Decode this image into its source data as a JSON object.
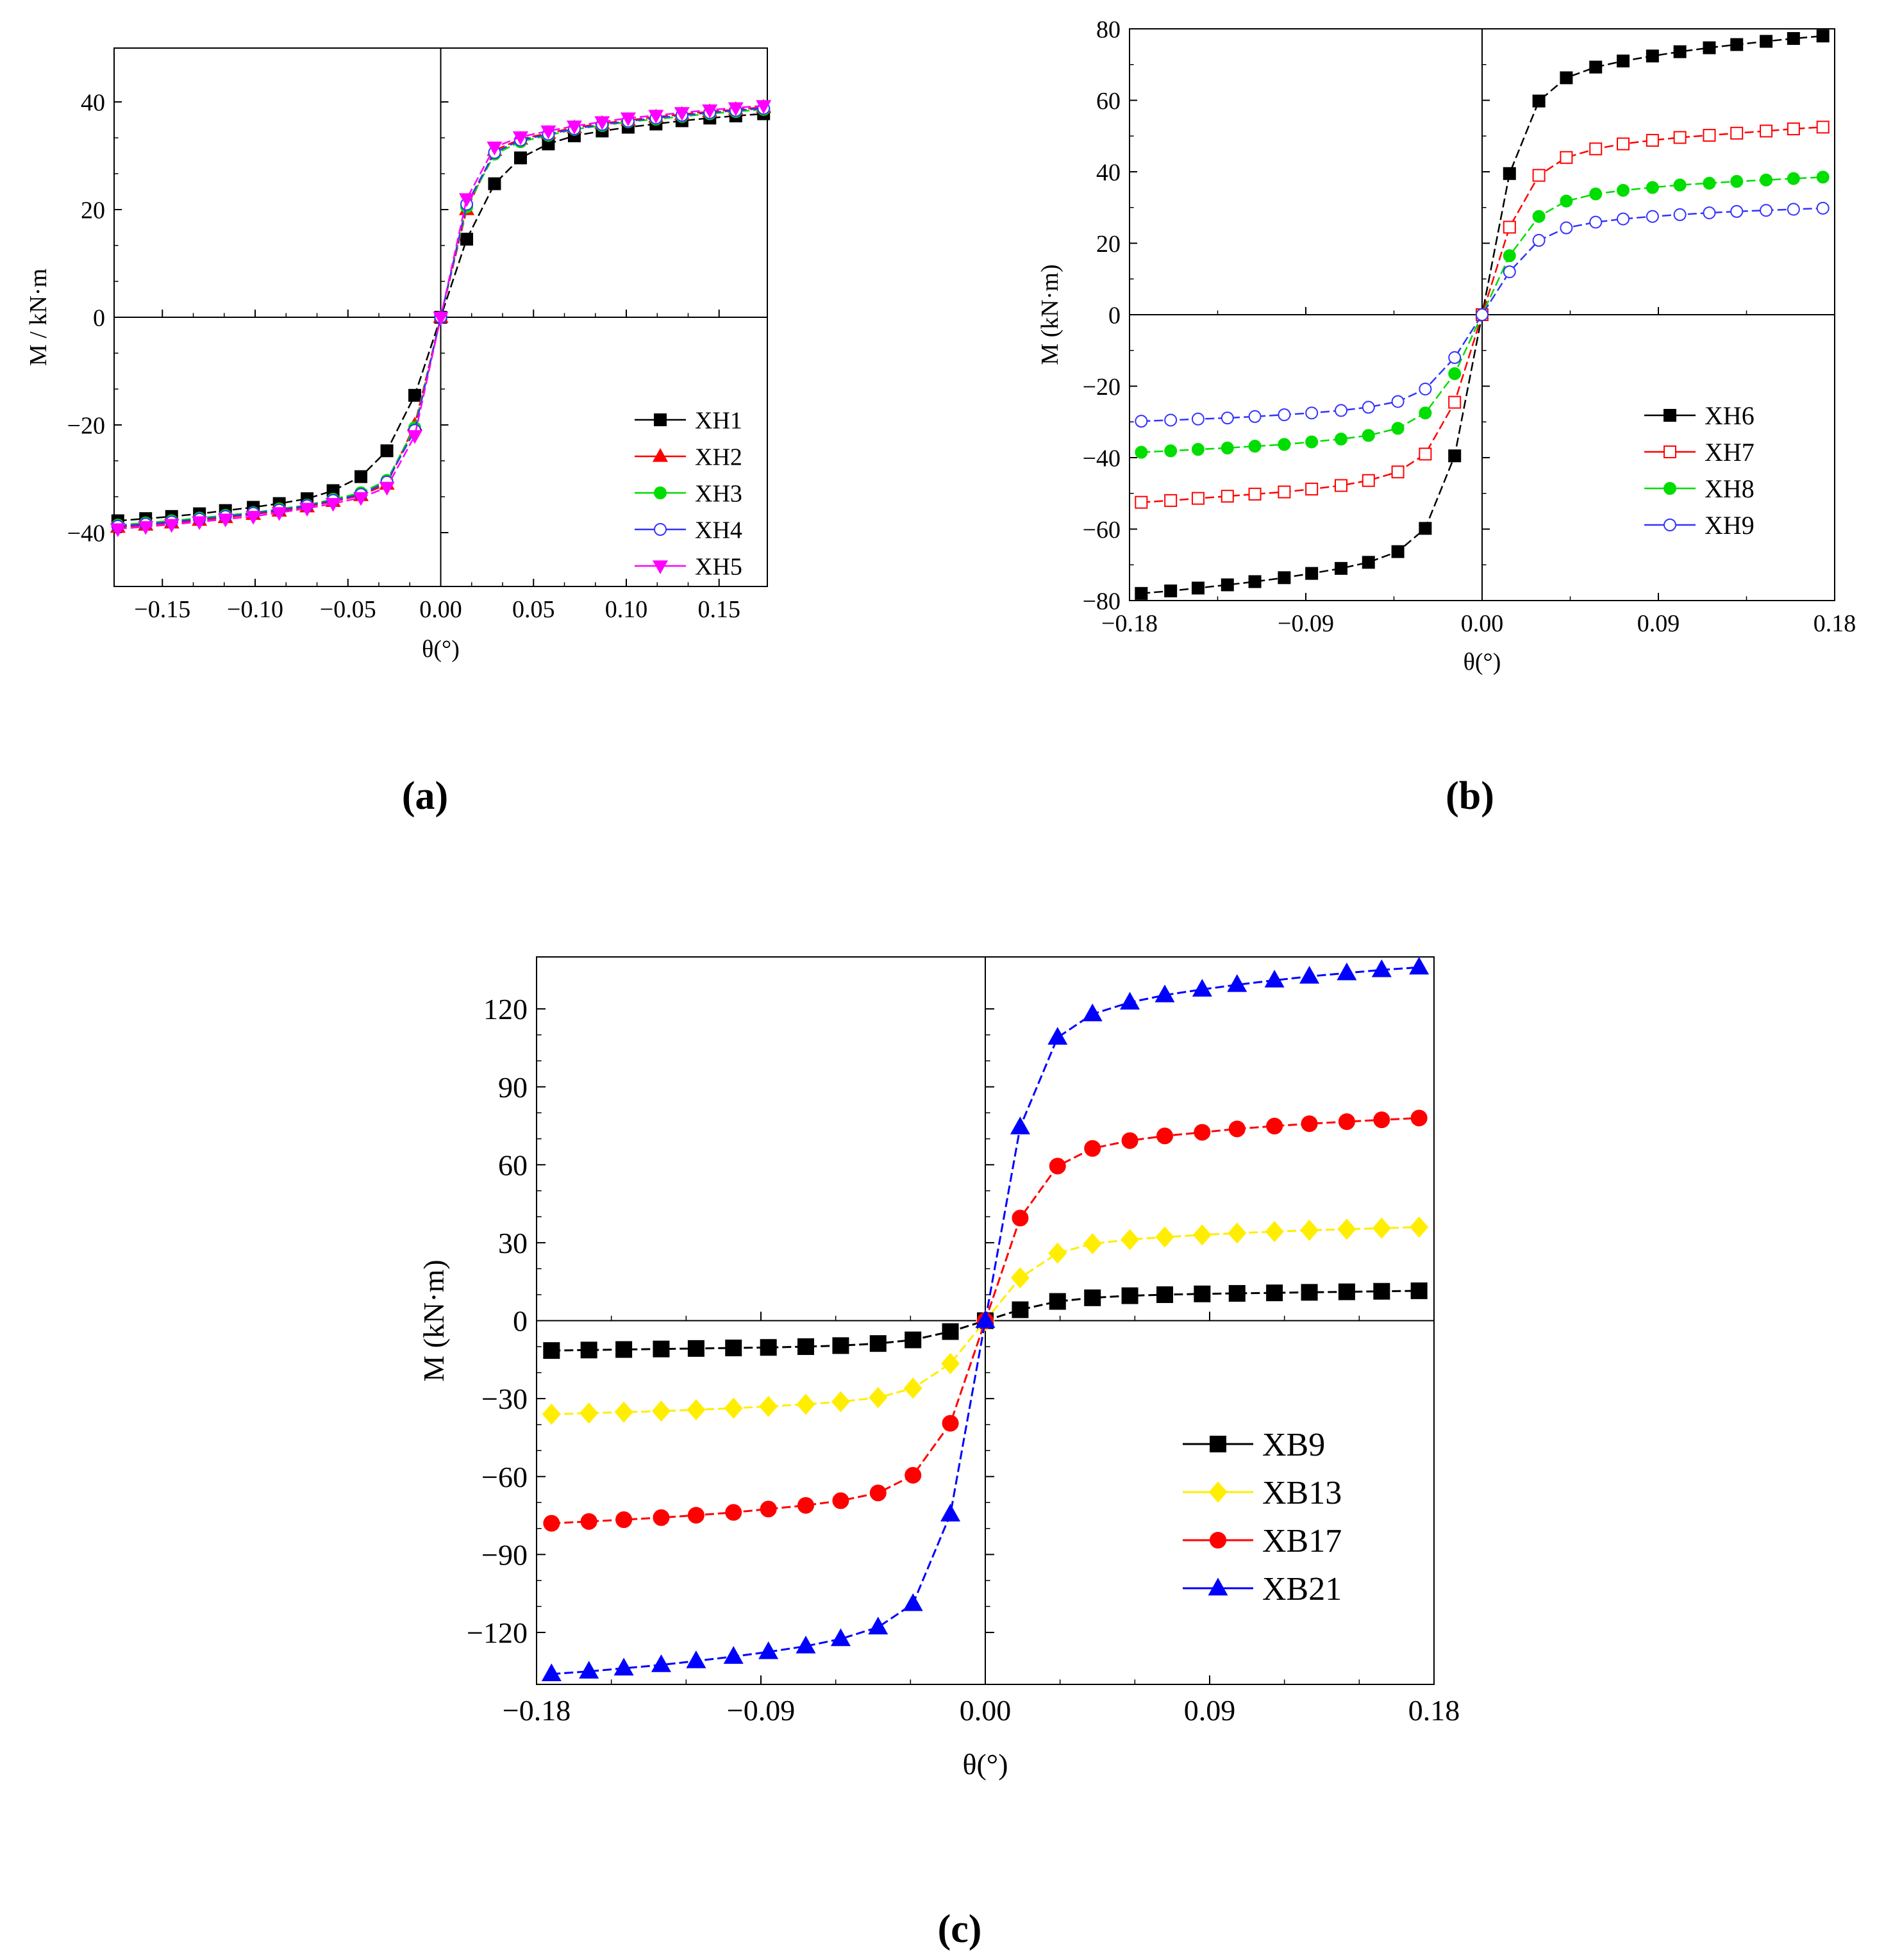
{
  "figure": {
    "panel_labels": [
      "(a)",
      "(b)",
      "(c)"
    ]
  },
  "chart_data": [
    {
      "type": "line",
      "panel": "(a)",
      "title": "",
      "xlabel": "θ(°)",
      "ylabel": "M / kN·m",
      "xlim": [
        -0.176,
        0.176
      ],
      "ylim": [
        -50,
        50
      ],
      "xticks": [
        -0.15,
        -0.1,
        -0.05,
        0.0,
        0.05,
        0.1,
        0.15
      ],
      "xtick_labels": [
        "−0.15",
        "−0.10",
        "−0.05",
        "0.00",
        "0.05",
        "0.10",
        "0.15"
      ],
      "yticks": [
        -40,
        -20,
        0,
        20,
        40
      ],
      "ytick_labels": [
        "−40",
        "−20",
        "0",
        "20",
        "40"
      ],
      "legend_position": "bottom-right",
      "x": [
        -0.174,
        -0.159,
        -0.145,
        -0.13,
        -0.116,
        -0.101,
        -0.087,
        -0.072,
        -0.058,
        -0.043,
        -0.029,
        -0.014,
        0,
        0.014,
        0.029,
        0.043,
        0.058,
        0.072,
        0.087,
        0.101,
        0.116,
        0.13,
        0.145,
        0.159,
        0.174
      ],
      "series": [
        {
          "name": "XH1",
          "color": "#000000",
          "marker": "square-filled",
          "values": [
            -37.8,
            -37.4,
            -37.0,
            -36.5,
            -35.9,
            -35.3,
            -34.6,
            -33.7,
            -32.2,
            -29.6,
            -24.8,
            -14.5,
            0,
            14.5,
            24.8,
            29.6,
            32.2,
            33.7,
            34.6,
            35.3,
            35.9,
            36.5,
            37.0,
            37.4,
            37.8
          ]
        },
        {
          "name": "XH2",
          "color": "#ff0000",
          "marker": "triangle-up-filled",
          "values": [
            -39.0,
            -38.6,
            -38.2,
            -37.7,
            -37.2,
            -36.6,
            -36.0,
            -35.2,
            -34.2,
            -33.1,
            -31.0,
            -20.0,
            0,
            20.0,
            31.0,
            33.1,
            34.2,
            35.2,
            36.0,
            36.6,
            37.2,
            37.7,
            38.2,
            38.6,
            39.0
          ]
        },
        {
          "name": "XH3",
          "color": "#00dd00",
          "marker": "circle-filled",
          "values": [
            -38.6,
            -38.2,
            -37.8,
            -37.3,
            -36.8,
            -36.3,
            -35.6,
            -34.9,
            -33.8,
            -32.6,
            -30.3,
            -20.5,
            0,
            20.5,
            30.3,
            32.6,
            33.8,
            34.9,
            35.6,
            36.3,
            36.8,
            37.3,
            37.8,
            38.2,
            38.6
          ]
        },
        {
          "name": "XH4",
          "color": "#3333ff",
          "marker": "circle-open",
          "values": [
            -38.8,
            -38.4,
            -38.0,
            -37.5,
            -37.0,
            -36.4,
            -35.8,
            -35.0,
            -34.0,
            -32.9,
            -30.6,
            -21.0,
            0,
            21.0,
            30.6,
            32.9,
            34.0,
            35.0,
            35.8,
            36.4,
            37.0,
            37.5,
            38.0,
            38.4,
            38.8
          ]
        },
        {
          "name": "XH5",
          "color": "#ff00ff",
          "marker": "triangle-down-filled",
          "values": [
            -39.3,
            -38.9,
            -38.5,
            -38.0,
            -37.5,
            -37.0,
            -36.3,
            -35.5,
            -34.6,
            -33.5,
            -31.6,
            -22.0,
            0,
            22.0,
            31.6,
            33.5,
            34.6,
            35.5,
            36.3,
            37.0,
            37.5,
            38.0,
            38.5,
            38.9,
            39.3
          ]
        }
      ]
    },
    {
      "type": "line",
      "panel": "(b)",
      "title": "",
      "xlabel": "θ(°)",
      "ylabel": "M (kN·m)",
      "xlim": [
        -0.18,
        0.18
      ],
      "ylim": [
        -80,
        80
      ],
      "xticks": [
        -0.18,
        -0.09,
        0.0,
        0.09,
        0.18
      ],
      "xtick_labels": [
        "−0.18",
        "−0.09",
        "0.00",
        "0.09",
        "0.18"
      ],
      "yticks": [
        -80,
        -60,
        -40,
        -20,
        0,
        20,
        40,
        60,
        80
      ],
      "ytick_labels": [
        "−80",
        "−60",
        "−40",
        "−20",
        "0",
        "20",
        "40",
        "60",
        "80"
      ],
      "legend_position": "bottom-right",
      "x": [
        -0.174,
        -0.159,
        -0.145,
        -0.13,
        -0.116,
        -0.101,
        -0.087,
        -0.072,
        -0.058,
        -0.043,
        -0.029,
        -0.014,
        0,
        0.014,
        0.029,
        0.043,
        0.058,
        0.072,
        0.087,
        0.101,
        0.116,
        0.13,
        0.145,
        0.159,
        0.174
      ],
      "series": [
        {
          "name": "XH6",
          "color": "#000000",
          "marker": "square-filled",
          "values": [
            -78.0,
            -77.3,
            -76.5,
            -75.6,
            -74.7,
            -73.6,
            -72.4,
            -71.0,
            -69.3,
            -66.3,
            -59.8,
            -39.5,
            0,
            39.5,
            59.8,
            66.3,
            69.3,
            71.0,
            72.4,
            73.6,
            74.7,
            75.6,
            76.5,
            77.3,
            78.0
          ]
        },
        {
          "name": "XH7",
          "color": "#ff0000",
          "marker": "square-open",
          "values": [
            -52.5,
            -52.0,
            -51.4,
            -50.8,
            -50.2,
            -49.6,
            -48.8,
            -47.8,
            -46.4,
            -44.0,
            -39.0,
            -24.5,
            0,
            24.5,
            39.0,
            44.0,
            46.4,
            47.8,
            48.8,
            49.6,
            50.2,
            50.8,
            51.4,
            52.0,
            52.5
          ]
        },
        {
          "name": "XH8",
          "color": "#00dd00",
          "marker": "circle-filled",
          "values": [
            -38.5,
            -38.1,
            -37.7,
            -37.3,
            -36.8,
            -36.3,
            -35.6,
            -34.8,
            -33.8,
            -31.8,
            -27.5,
            -16.5,
            0,
            16.5,
            27.5,
            31.8,
            33.8,
            34.8,
            35.6,
            36.3,
            36.8,
            37.3,
            37.7,
            38.1,
            38.5
          ]
        },
        {
          "name": "XH9",
          "color": "#3333ff",
          "marker": "circle-open",
          "values": [
            -29.8,
            -29.5,
            -29.2,
            -28.9,
            -28.5,
            -28.0,
            -27.5,
            -26.8,
            -25.9,
            -24.3,
            -20.8,
            -12.0,
            0,
            12.0,
            20.8,
            24.3,
            25.9,
            26.8,
            27.5,
            28.0,
            28.5,
            28.9,
            29.2,
            29.5,
            29.8
          ]
        }
      ]
    },
    {
      "type": "line",
      "panel": "(c)",
      "title": "",
      "xlabel": "θ(°)",
      "ylabel": "M (kN·m)",
      "xlim": [
        -0.18,
        0.18
      ],
      "ylim": [
        -140,
        140
      ],
      "xticks": [
        -0.18,
        -0.09,
        0.0,
        0.09,
        0.18
      ],
      "xtick_labels": [
        "−0.18",
        "−0.09",
        "0.00",
        "0.09",
        "0.18"
      ],
      "yticks": [
        -120,
        -90,
        -60,
        -30,
        0,
        30,
        60,
        90,
        120
      ],
      "ytick_labels": [
        "−120",
        "−90",
        "−60",
        "−30",
        "0",
        "30",
        "60",
        "90",
        "120"
      ],
      "legend_position": "bottom-right",
      "x": [
        -0.174,
        -0.159,
        -0.145,
        -0.13,
        -0.116,
        -0.101,
        -0.087,
        -0.072,
        -0.058,
        -0.043,
        -0.029,
        -0.014,
        0,
        0.014,
        0.029,
        0.043,
        0.058,
        0.072,
        0.087,
        0.101,
        0.116,
        0.13,
        0.145,
        0.159,
        0.174
      ],
      "series": [
        {
          "name": "XB9",
          "color": "#000000",
          "marker": "square-filled",
          "values": [
            -11.5,
            -11.3,
            -11.1,
            -10.9,
            -10.7,
            -10.5,
            -10.3,
            -10.0,
            -9.6,
            -8.8,
            -7.4,
            -4.2,
            0,
            4.2,
            7.4,
            8.8,
            9.6,
            10.0,
            10.3,
            10.5,
            10.7,
            10.9,
            11.1,
            11.3,
            11.5
          ]
        },
        {
          "name": "XB13",
          "color": "#ffee00",
          "marker": "diamond-filled",
          "values": [
            -36.0,
            -35.6,
            -35.2,
            -34.8,
            -34.3,
            -33.7,
            -33.0,
            -32.2,
            -31.2,
            -29.6,
            -26.0,
            -16.5,
            0,
            16.5,
            26.0,
            29.6,
            31.2,
            32.2,
            33.0,
            33.7,
            34.3,
            34.8,
            35.2,
            35.6,
            36.0
          ]
        },
        {
          "name": "XB17",
          "color": "#ff0000",
          "marker": "circle-filled",
          "values": [
            -78.0,
            -77.3,
            -76.6,
            -75.8,
            -74.9,
            -73.8,
            -72.5,
            -71.1,
            -69.3,
            -66.3,
            -59.5,
            -39.5,
            0,
            39.5,
            59.5,
            66.3,
            69.3,
            71.1,
            72.5,
            73.8,
            74.9,
            75.8,
            76.6,
            77.3,
            78.0
          ]
        },
        {
          "name": "XB21",
          "color": "#0000ff",
          "marker": "triangle-up-filled",
          "values": [
            -136.0,
            -135.0,
            -133.8,
            -132.5,
            -131.0,
            -129.3,
            -127.5,
            -125.3,
            -122.5,
            -118.0,
            -109.0,
            -74.5,
            0,
            74.5,
            109.0,
            118.0,
            122.5,
            125.3,
            127.5,
            129.3,
            131.0,
            132.5,
            133.8,
            135.0,
            136.0
          ]
        }
      ]
    }
  ]
}
